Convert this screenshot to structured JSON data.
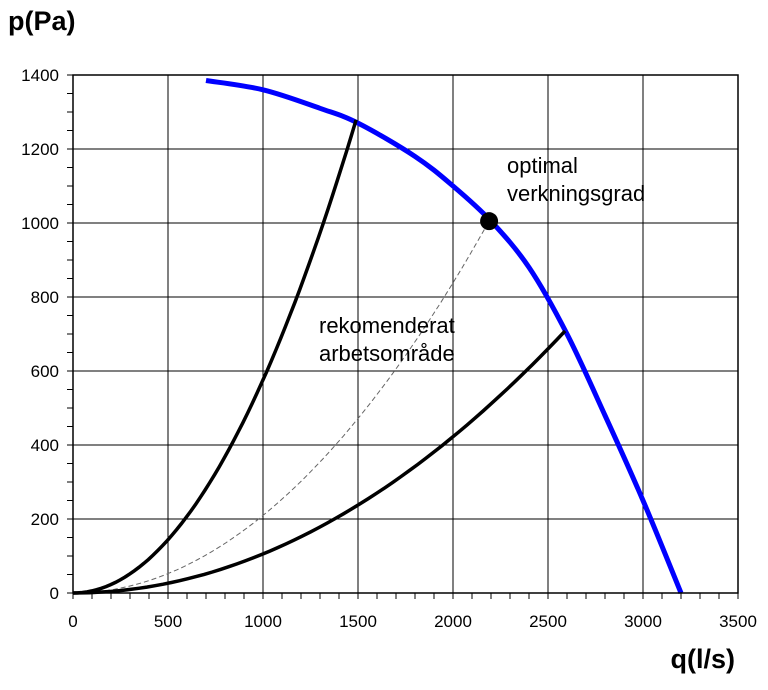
{
  "chart_data": {
    "type": "line",
    "title": "",
    "xlabel": "q(l/s)",
    "ylabel": "p(Pa)",
    "xlim": [
      0,
      3500
    ],
    "ylim": [
      0,
      1400
    ],
    "x_ticks": [
      0,
      500,
      1000,
      1500,
      2000,
      2500,
      3000,
      3500
    ],
    "y_ticks": [
      0,
      200,
      400,
      600,
      800,
      1000,
      1200,
      1400
    ],
    "grid": true,
    "colors": {
      "fan_curve": "#0000ff",
      "system_curves": "#000000",
      "optimal_point": "#000000",
      "grid": "#000000"
    },
    "series": [
      {
        "style": "fan-curve",
        "x": [
          700,
          1000,
          1300,
          1500,
          1800,
          2000,
          2200,
          2400,
          2600,
          2800,
          3000,
          3200
        ],
        "y": [
          1385,
          1360,
          1310,
          1270,
          1180,
          1100,
          1005,
          880,
          700,
          480,
          250,
          0
        ]
      },
      {
        "style": "system-curve-upper",
        "x_end": 1490,
        "y_end": 1278,
        "k": 0.000576
      },
      {
        "style": "system-curve-optimal",
        "x_end": 2190,
        "y_end": 1005,
        "k": 0.0002096
      },
      {
        "style": "system-curve-lower",
        "x_end": 2590,
        "y_end": 708,
        "k": 0.0001056
      }
    ],
    "points": [
      {
        "x": 2190,
        "y": 1005
      }
    ],
    "annotations": [
      {
        "lines": [
          "optimal",
          "verkningsgrad"
        ]
      },
      {
        "lines": [
          "rekomenderat",
          "arbetsområde"
        ]
      }
    ]
  }
}
